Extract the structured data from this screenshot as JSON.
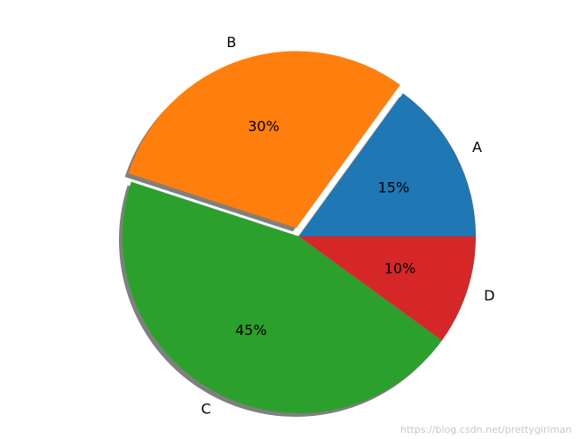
{
  "chart_data": {
    "type": "pie",
    "categories": [
      "A",
      "B",
      "C",
      "D"
    ],
    "values": [
      15,
      30,
      45,
      10
    ],
    "value_labels": [
      "15%",
      "30%",
      "45%",
      "10%"
    ],
    "colors": [
      "#1f77b4",
      "#ff7f0e",
      "#2ca02c",
      "#d62728"
    ],
    "explode": [
      0,
      0.05,
      0,
      0
    ],
    "shadow": true,
    "start_angle": 0
  },
  "watermark": "https://blog.csdn.net/prettygirlman"
}
